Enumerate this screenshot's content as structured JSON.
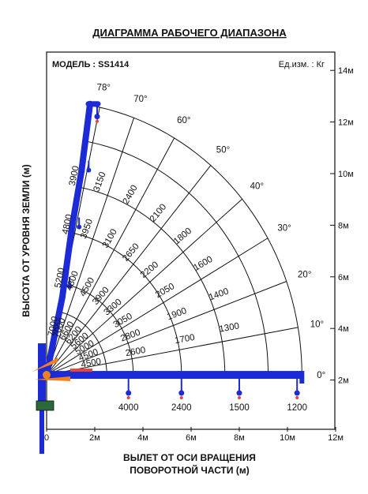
{
  "title": "ДИАГРАММА РАБОЧЕГО ДИАПАЗОНА",
  "model_label": "МОДЕЛЬ : SS1414",
  "units_label": "Ед.изм. : Кг",
  "y_axis_title": "ВЫСОТА ОТ УРОВНЯ ЗЕМЛИ (м)",
  "x_axis_title_line1": "ВЫЛЕТ ОТ ОСИ ВРАЩЕНИЯ",
  "x_axis_title_line2": "ПОВОРОТНОЙ ЧАСТИ (м)",
  "x_ticks": [
    {
      "value": 0,
      "label": "0"
    },
    {
      "value": 2,
      "label": "2м"
    },
    {
      "value": 4,
      "label": "4м"
    },
    {
      "value": 6,
      "label": "6м"
    },
    {
      "value": 8,
      "label": "8м"
    },
    {
      "value": 10,
      "label": "10м"
    },
    {
      "value": 12,
      "label": "12м"
    }
  ],
  "y_ticks": [
    {
      "value": 2,
      "label": "2м"
    },
    {
      "value": 4,
      "label": "4м"
    },
    {
      "value": 6,
      "label": "6м"
    },
    {
      "value": 8,
      "label": "8м"
    },
    {
      "value": 10,
      "label": "10м"
    },
    {
      "value": 12,
      "label": "12м"
    },
    {
      "value": 14,
      "label": "14м"
    }
  ],
  "pivot": {
    "x": 0,
    "y": 2.2
  },
  "boom_angles_deg": [
    0,
    10,
    20,
    30,
    40,
    50,
    60,
    70,
    78
  ],
  "reach_radii_m": [
    2.5,
    3.6,
    5.6,
    7.4,
    9.2,
    10.6
  ],
  "load_rows": [
    {
      "angle": 78,
      "loads": [
        "7000",
        "5200",
        "4800",
        "3900"
      ]
    },
    {
      "angle": 70,
      "loads": [
        "7000",
        "4800",
        "3950",
        "3150"
      ]
    },
    {
      "angle": 60,
      "loads": [
        "6600",
        "4500",
        "3100",
        "2400"
      ]
    },
    {
      "angle": 50,
      "loads": [
        "6200",
        "3900",
        "2650",
        "2100"
      ]
    },
    {
      "angle": 40,
      "loads": [
        "5600",
        "3300",
        "2200",
        "1800"
      ]
    },
    {
      "angle": 30,
      "loads": [
        "5000",
        "3050",
        "2050",
        "1600"
      ]
    },
    {
      "angle": 20,
      "loads": [
        "4500",
        "2800",
        "1900",
        "1400"
      ]
    },
    {
      "angle": 10,
      "loads": [
        "4500",
        "2600",
        "1700",
        "1300"
      ]
    },
    {
      "angle": 0,
      "loads": [
        "4000",
        "2400",
        "1500",
        "1200"
      ]
    }
  ],
  "colors": {
    "boom": "#1c2bd6",
    "hook": "#e8443a",
    "accent": "#f08020",
    "grid": "#111111"
  }
}
